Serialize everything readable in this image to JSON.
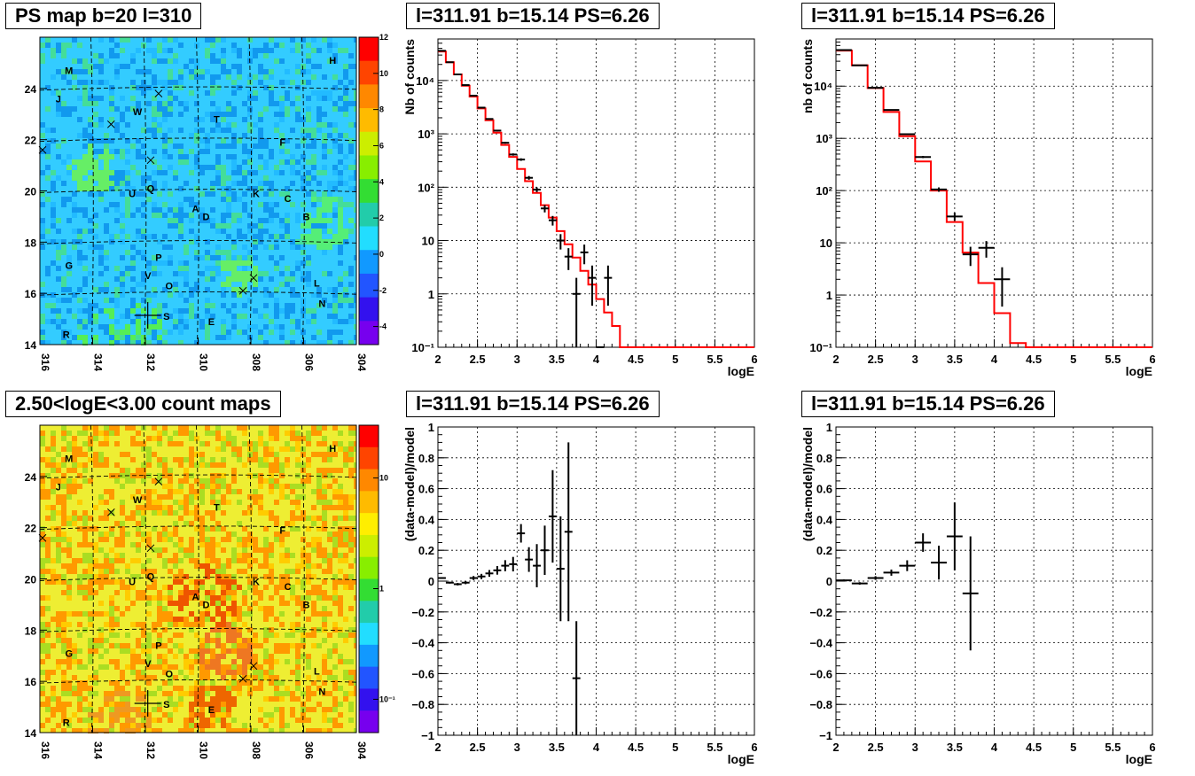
{
  "maps": [
    {
      "title": "PS map b=20 l=310",
      "colorbar": {
        "type": "linear",
        "ticks": [
          "12",
          "10",
          "8",
          "6",
          "4",
          "2",
          "0",
          "-2",
          "-4"
        ],
        "range": [
          -5,
          12
        ]
      },
      "base_color": "#33ccff",
      "hotspots": [
        [
          95,
          345,
          50,
          "#55ee55"
        ],
        [
          60,
          150,
          25,
          "#66ee66"
        ],
        [
          320,
          210,
          30,
          "#55ee77"
        ],
        [
          225,
          270,
          20,
          "#66ee66"
        ]
      ]
    },
    {
      "title": "2.50<logE<3.00 count maps",
      "colorbar": {
        "type": "log",
        "ticks": [
          "10",
          "1",
          "10⁻¹"
        ],
        "range": [
          0.05,
          30
        ]
      },
      "base_color": "#eeee33",
      "hotspots": [
        [
          185,
          195,
          40,
          "#ee5500"
        ],
        [
          195,
          320,
          25,
          "#ee6600"
        ],
        [
          210,
          255,
          30,
          "#ee7722"
        ],
        [
          95,
          340,
          40,
          "#ee9922"
        ]
      ]
    }
  ],
  "map_axes": {
    "x_ticks": [
      "316",
      "314",
      "312",
      "310",
      "308",
      "306",
      "304"
    ],
    "y_ticks": [
      "24",
      "22",
      "20",
      "18",
      "16",
      "14"
    ]
  },
  "map_labels": [
    "M",
    "H",
    "J",
    "W",
    "T",
    "F",
    "U",
    "Q",
    "K",
    "C",
    "A",
    "D",
    "B",
    "G",
    "P",
    "V",
    "O",
    "L",
    "N",
    "S",
    "E",
    "R"
  ],
  "spectra": [
    {
      "title": "l=311.91 b=15.14 PS=6.26",
      "ylabel": "Nb of counts",
      "xlabel": "logE",
      "ytick_labels": [
        "10⁴",
        "10³",
        "10²",
        "10",
        "1",
        "10⁻¹"
      ],
      "xtick_labels": [
        "2",
        "2.5",
        "3",
        "3.5",
        "4",
        "4.5",
        "5",
        "5.5",
        "6"
      ]
    },
    {
      "title": "l=311.91 b=15.14 PS=6.26",
      "ylabel": "nb of counts",
      "xlabel": "logE",
      "ytick_labels": [
        "10⁴",
        "10³",
        "10²",
        "10",
        "1",
        "10⁻¹"
      ],
      "xtick_labels": [
        "2",
        "2.5",
        "3",
        "3.5",
        "4",
        "4.5",
        "5",
        "5.5",
        "6"
      ]
    }
  ],
  "residuals": [
    {
      "title": "l=311.91 b=15.14 PS=6.26",
      "ylabel": "(data-model)/model",
      "xlabel": "logE",
      "ytick_labels": [
        "1",
        "0.8",
        "0.6",
        "0.4",
        "0.2",
        "0",
        "−0.2",
        "−0.4",
        "−0.6",
        "−0.8",
        "−1"
      ],
      "xtick_labels": [
        "2",
        "2.5",
        "3",
        "3.5",
        "4",
        "4.5",
        "5",
        "5.5",
        "6"
      ]
    },
    {
      "title": "l=311.91 b=15.14 PS=6.26",
      "ylabel": "(data-model)/model",
      "xlabel": "logE",
      "ytick_labels": [
        "1",
        "0.8",
        "0.6",
        "0.4",
        "0.2",
        "0",
        "−0.2",
        "−0.4",
        "−0.6",
        "−0.8",
        "−1"
      ],
      "xtick_labels": [
        "2",
        "2.5",
        "3",
        "3.5",
        "4",
        "4.5",
        "5",
        "5.5",
        "6"
      ]
    }
  ],
  "chart_data": [
    {
      "type": "heatmap",
      "title": "PS map b=20 l=310",
      "xlabel": "",
      "ylabel": "",
      "xlim": [
        316,
        304
      ],
      "ylim": [
        14,
        26
      ],
      "color_range": [
        -5,
        12
      ],
      "markers": {
        "labels": [
          {
            "t": "M",
            "l": 314.9,
            "b": 24.7
          },
          {
            "t": "H",
            "l": 304.9,
            "b": 25.1
          },
          {
            "t": "J",
            "l": 315.3,
            "b": 23.6
          },
          {
            "t": "W",
            "l": 312.3,
            "b": 23.1
          },
          {
            "t": "T",
            "l": 309.3,
            "b": 22.8
          },
          {
            "t": "F",
            "l": 306.8,
            "b": 21.9
          },
          {
            "t": "U",
            "l": 312.5,
            "b": 19.9
          },
          {
            "t": "Q",
            "l": 311.8,
            "b": 20.1
          },
          {
            "t": "K",
            "l": 307.8,
            "b": 19.9
          },
          {
            "t": "C",
            "l": 306.6,
            "b": 19.7
          },
          {
            "t": "A",
            "l": 310.1,
            "b": 19.3
          },
          {
            "t": "D",
            "l": 309.7,
            "b": 19.0
          },
          {
            "t": "B",
            "l": 305.9,
            "b": 19.0
          },
          {
            "t": "G",
            "l": 314.9,
            "b": 17.1
          },
          {
            "t": "P",
            "l": 311.5,
            "b": 17.4
          },
          {
            "t": "V",
            "l": 311.9,
            "b": 16.7
          },
          {
            "t": "O",
            "l": 311.1,
            "b": 16.3
          },
          {
            "t": "L",
            "l": 305.5,
            "b": 16.4
          },
          {
            "t": "N",
            "l": 305.3,
            "b": 15.6
          },
          {
            "t": "S",
            "l": 311.2,
            "b": 15.1
          },
          {
            "t": "E",
            "l": 309.5,
            "b": 14.9
          },
          {
            "t": "R",
            "l": 315.0,
            "b": 14.4
          }
        ],
        "crosses": [
          {
            "l": 313.3,
            "b": 22.6
          },
          {
            "l": 311.8,
            "b": 21.2
          },
          {
            "l": 311.5,
            "b": 23.8
          },
          {
            "l": 315.9,
            "b": 21.6
          },
          {
            "l": 308.3,
            "b": 16.1
          },
          {
            "l": 307.9,
            "b": 16.6
          }
        ],
        "big_cross": {
          "l": 311.91,
          "b": 15.14
        }
      }
    },
    {
      "type": "heatmap",
      "title": "2.50<logE<3.00 count maps",
      "xlabel": "",
      "ylabel": "",
      "xlim": [
        316,
        304
      ],
      "ylim": [
        14,
        26
      ],
      "scale": "log",
      "color_range": [
        0.05,
        30
      ]
    },
    {
      "type": "line",
      "title": "l=311.91 b=15.14 PS=6.26",
      "xlabel": "logE",
      "ylabel": "Nb of counts",
      "xlim": [
        2,
        6
      ],
      "ylim": [
        0.1,
        60000
      ],
      "yscale": "log",
      "series": [
        {
          "style": "step",
          "color": "#ff0000",
          "x": [
            2.0,
            2.1,
            2.2,
            2.3,
            2.4,
            2.5,
            2.6,
            2.7,
            2.8,
            2.9,
            3.0,
            3.1,
            3.2,
            3.3,
            3.4,
            3.5,
            3.6,
            3.7,
            3.8,
            3.9,
            4.0,
            4.1,
            4.2,
            4.3,
            6.0
          ],
          "values": [
            35000,
            22000,
            13000,
            8000,
            5000,
            3000,
            1800,
            1050,
            620,
            370,
            220,
            130,
            78,
            46,
            27,
            15,
            8.5,
            4.8,
            2.7,
            1.5,
            0.8,
            0.45,
            0.25,
            0.1,
            0.1
          ]
        },
        {
          "style": "errorbar",
          "color": "#000000",
          "x": [
            2.05,
            2.15,
            2.25,
            2.35,
            2.45,
            2.55,
            2.65,
            2.75,
            2.85,
            2.95,
            3.05,
            3.15,
            3.25,
            3.35,
            3.45,
            3.55,
            3.65,
            3.75,
            3.85,
            3.95,
            4.05,
            4.15
          ],
          "values": [
            36000,
            22000,
            13000,
            8200,
            5200,
            3100,
            1900,
            1150,
            680,
            410,
            330,
            150,
            90,
            40,
            24,
            10,
            5,
            1,
            6,
            2,
            0.1,
            2
          ],
          "err_lo": [
            200,
            150,
            110,
            90,
            70,
            55,
            45,
            35,
            26,
            20,
            18,
            12,
            9,
            6.3,
            4.9,
            3.2,
            2.2,
            1,
            2.4,
            1.4,
            0,
            1.4
          ],
          "err_hi": [
            200,
            150,
            110,
            90,
            70,
            55,
            45,
            35,
            26,
            20,
            18,
            12,
            9,
            6.3,
            4.9,
            3.2,
            2.2,
            1,
            2.4,
            1.4,
            0,
            1.4
          ]
        }
      ]
    },
    {
      "type": "line",
      "title": "l=311.91 b=15.14 PS=6.26",
      "xlabel": "logE",
      "ylabel": "nb of counts",
      "xlim": [
        2,
        6
      ],
      "ylim": [
        0.1,
        80000
      ],
      "yscale": "log",
      "series": [
        {
          "style": "step",
          "color": "#ff0000",
          "x": [
            2.0,
            2.2,
            2.4,
            2.6,
            2.8,
            3.0,
            3.2,
            3.4,
            3.6,
            3.8,
            4.0,
            4.2,
            4.4,
            6.0
          ],
          "values": [
            48000,
            25000,
            9200,
            3200,
            1100,
            360,
            100,
            25,
            6.5,
            1.7,
            0.45,
            0.12,
            0.1,
            0.1
          ]
        },
        {
          "style": "errorbar",
          "color": "#000000",
          "x": [
            2.1,
            2.3,
            2.5,
            2.7,
            2.9,
            3.1,
            3.3,
            3.5,
            3.7,
            3.9,
            4.1
          ],
          "values": [
            49000,
            25000,
            9300,
            3500,
            1200,
            440,
            105,
            32,
            6,
            8,
            2
          ],
          "err_lo": [
            220,
            160,
            96,
            60,
            35,
            21,
            10,
            5.7,
            2.4,
            2.8,
            1.4
          ],
          "err_hi": [
            220,
            160,
            96,
            60,
            35,
            21,
            10,
            5.7,
            2.4,
            2.8,
            1.4
          ]
        }
      ]
    },
    {
      "type": "scatter",
      "title": "l=311.91 b=15.14 PS=6.26",
      "xlabel": "logE",
      "ylabel": "(data-model)/model",
      "xlim": [
        2,
        6
      ],
      "ylim": [
        -1,
        1
      ],
      "series": [
        {
          "style": "errorbar",
          "color": "#000000",
          "x": [
            2.05,
            2.15,
            2.25,
            2.35,
            2.45,
            2.55,
            2.65,
            2.75,
            2.85,
            2.95,
            3.05,
            3.15,
            3.25,
            3.35,
            3.45,
            3.55,
            3.65,
            3.75
          ],
          "values": [
            0.02,
            -0.01,
            -0.02,
            -0.01,
            0.02,
            0.03,
            0.05,
            0.07,
            0.1,
            0.11,
            0.31,
            0.14,
            0.1,
            0.2,
            0.42,
            0.08,
            0.32,
            -0.63
          ],
          "err": [
            0.005,
            0.006,
            0.008,
            0.01,
            0.013,
            0.017,
            0.022,
            0.028,
            0.036,
            0.047,
            0.06,
            0.08,
            0.14,
            0.16,
            0.3,
            0.34,
            0.58,
            0.37
          ]
        }
      ]
    },
    {
      "type": "scatter",
      "title": "l=311.91 b=15.14 PS=6.26",
      "xlabel": "logE",
      "ylabel": "(data-model)/model",
      "xlim": [
        2,
        6
      ],
      "ylim": [
        -1,
        1
      ],
      "series": [
        {
          "style": "errorbar",
          "color": "#000000",
          "x": [
            2.1,
            2.3,
            2.5,
            2.7,
            2.9,
            3.1,
            3.3,
            3.5,
            3.7
          ],
          "values": [
            0.005,
            -0.015,
            0.02,
            0.055,
            0.1,
            0.25,
            0.12,
            0.29,
            -0.08
          ],
          "err": [
            0.006,
            0.008,
            0.012,
            0.02,
            0.035,
            0.06,
            0.11,
            0.22,
            0.37
          ]
        }
      ]
    }
  ]
}
